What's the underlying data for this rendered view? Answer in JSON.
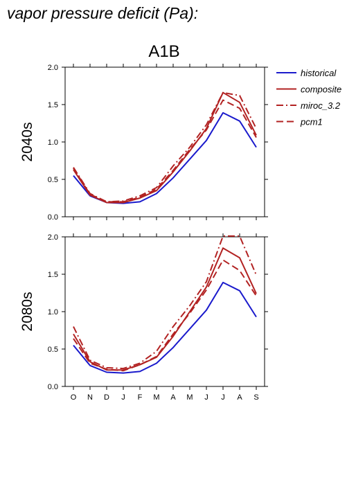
{
  "title": "vapor pressure deficit (Pa):",
  "scenario": "A1B",
  "legend": {
    "placement": "top-right",
    "entries": [
      {
        "label": "historical",
        "color": "#1a1acc",
        "dash": "solid"
      },
      {
        "label": "composite",
        "color": "#b22222",
        "dash": "solid"
      },
      {
        "label": "miroc_3.2",
        "color": "#b22222",
        "dash": "dashdot"
      },
      {
        "label": "pcm1",
        "color": "#b22222",
        "dash": "dashed"
      }
    ]
  },
  "chart_data": [
    {
      "type": "line",
      "panel_label": "2040s",
      "categories": [
        "O",
        "N",
        "D",
        "J",
        "F",
        "M",
        "A",
        "M",
        "J",
        "J",
        "A",
        "S"
      ],
      "ylim": [
        0,
        2.0
      ],
      "yticks": [
        "0.0",
        "0.5",
        "1.0",
        "1.5",
        "2.0"
      ],
      "series": [
        {
          "name": "historical",
          "values": [
            0.55,
            0.28,
            0.19,
            0.18,
            0.2,
            0.31,
            0.52,
            0.77,
            1.02,
            1.39,
            1.28,
            0.93
          ]
        },
        {
          "name": "composite",
          "values": [
            0.63,
            0.29,
            0.19,
            0.19,
            0.25,
            0.35,
            0.6,
            0.88,
            1.18,
            1.66,
            1.53,
            1.09
          ]
        },
        {
          "name": "miroc_3.2",
          "values": [
            0.66,
            0.31,
            0.2,
            0.21,
            0.28,
            0.39,
            0.68,
            0.93,
            1.23,
            1.66,
            1.62,
            1.18
          ]
        },
        {
          "name": "pcm1",
          "values": [
            0.65,
            0.3,
            0.2,
            0.2,
            0.26,
            0.37,
            0.62,
            0.9,
            1.16,
            1.56,
            1.45,
            1.06
          ]
        }
      ]
    },
    {
      "type": "line",
      "panel_label": "2080s",
      "categories": [
        "O",
        "N",
        "D",
        "J",
        "F",
        "M",
        "A",
        "M",
        "J",
        "J",
        "A",
        "S"
      ],
      "ylim": [
        0,
        2.0
      ],
      "yticks": [
        "0.0",
        "0.5",
        "1.0",
        "1.5",
        "2.0"
      ],
      "series": [
        {
          "name": "historical",
          "values": [
            0.55,
            0.28,
            0.19,
            0.18,
            0.2,
            0.31,
            0.52,
            0.77,
            1.02,
            1.39,
            1.28,
            0.93
          ]
        },
        {
          "name": "composite",
          "values": [
            0.7,
            0.33,
            0.22,
            0.22,
            0.29,
            0.39,
            0.67,
            1.0,
            1.33,
            1.85,
            1.72,
            1.24
          ]
        },
        {
          "name": "miroc_3.2",
          "values": [
            0.8,
            0.35,
            0.25,
            0.24,
            0.31,
            0.47,
            0.8,
            1.08,
            1.4,
            2.01,
            2.01,
            1.49
          ]
        },
        {
          "name": "pcm1",
          "values": [
            0.64,
            0.31,
            0.23,
            0.21,
            0.29,
            0.4,
            0.7,
            0.98,
            1.29,
            1.69,
            1.55,
            1.21
          ]
        }
      ]
    }
  ]
}
